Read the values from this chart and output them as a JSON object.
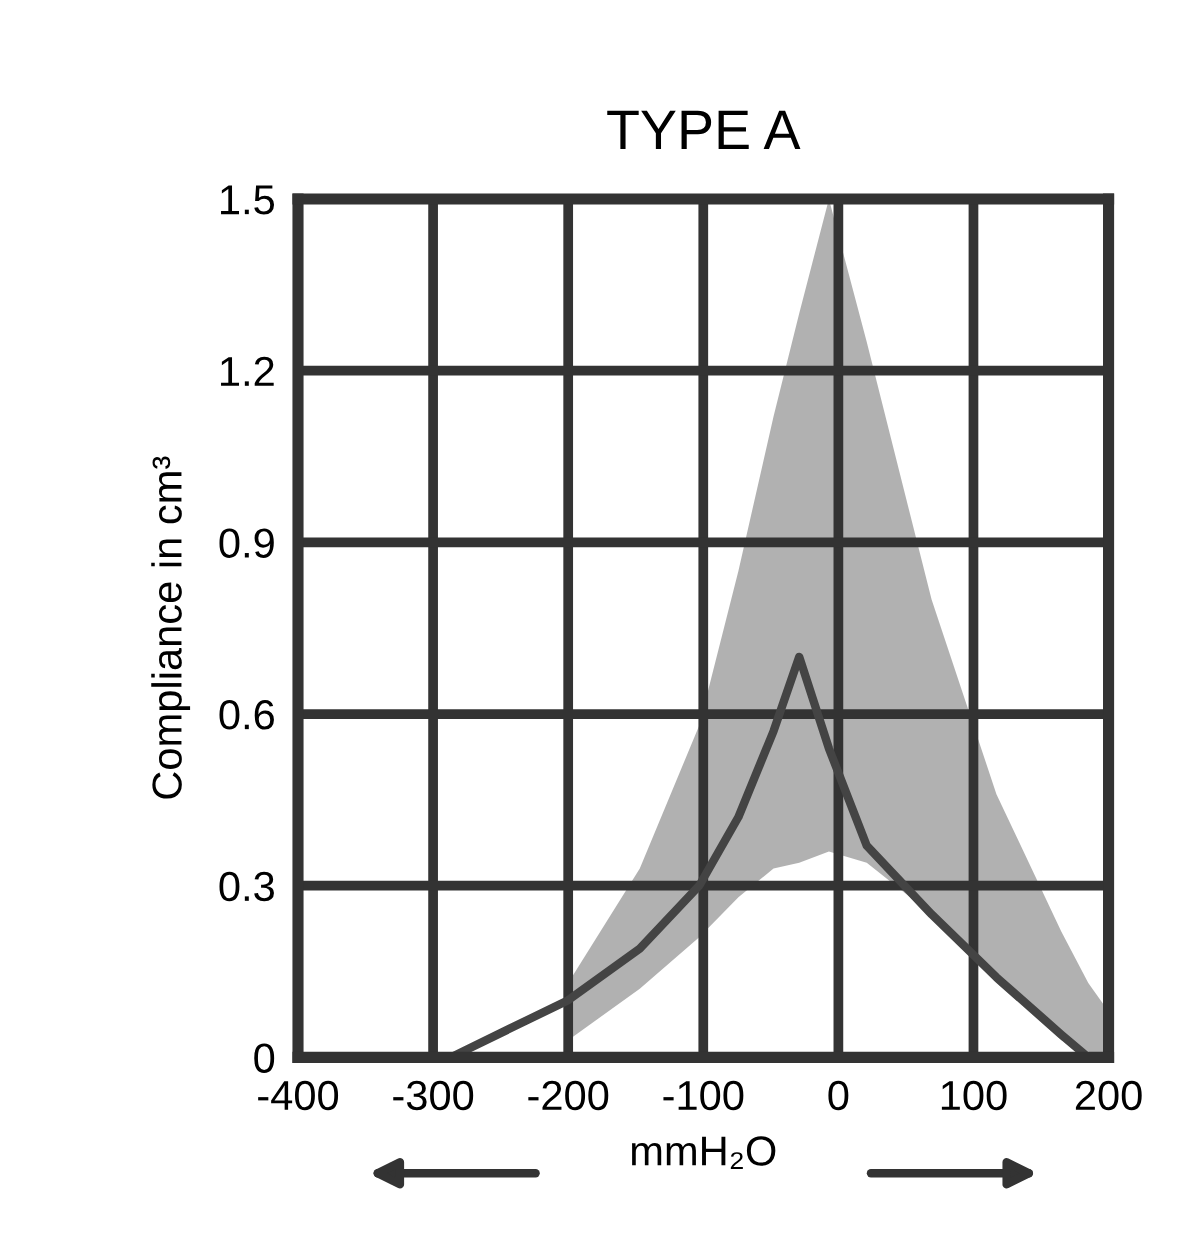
{
  "chart_data": {
    "type": "line",
    "title": "TYPE A",
    "xlabel": "mmH₂O",
    "ylabel": "Compliance in cm³",
    "xlim": [
      -400,
      200
    ],
    "xticks": [
      -400,
      -300,
      -200,
      -100,
      0,
      100,
      200
    ],
    "ylim": [
      0,
      1.5
    ],
    "yticks": [
      0,
      0.3,
      0.6,
      0.9,
      1.2,
      1.5
    ],
    "grid": true,
    "marker": "none",
    "line_style": "solid",
    "series": [
      {
        "type": "line",
        "color": "#444444",
        "x": [
          -287,
          -200,
          -147,
          -103,
          -74,
          -48,
          -29,
          -7,
          21,
          69,
          117,
          165,
          185,
          200
        ],
        "values": [
          0,
          0.1,
          0.19,
          0.3,
          0.42,
          0.57,
          0.7,
          0.54,
          0.37,
          0.25,
          0.14,
          0.04,
          0,
          null
        ],
        "lower": [
          null,
          0.03,
          0.12,
          0.21,
          0.28,
          0.33,
          0.34,
          0.36,
          0.34,
          0.25,
          0.13,
          0.03,
          0.01,
          0
        ],
        "upper": [
          null,
          0.13,
          0.33,
          0.58,
          0.85,
          1.12,
          1.3,
          1.5,
          1.25,
          0.8,
          0.46,
          0.22,
          0.13,
          0.08
        ]
      }
    ]
  }
}
